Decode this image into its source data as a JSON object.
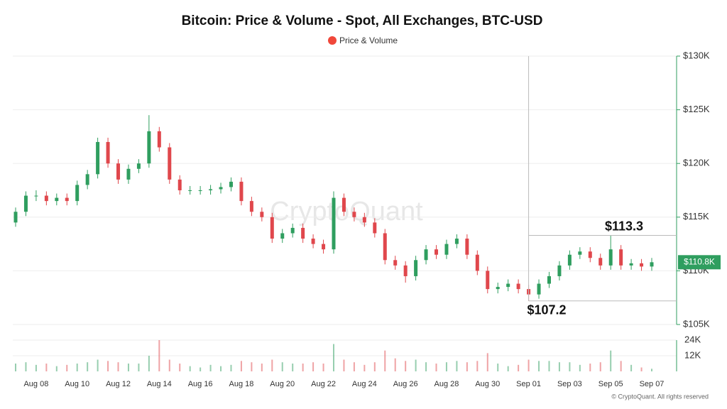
{
  "chart_data": {
    "type": "candlestick",
    "title": "Bitcoin: Price & Volume - Spot, All Exchanges, BTC-USD",
    "legend": "Price & Volume",
    "legend_color": "#f0473a",
    "watermark": "CryptoQuant",
    "copyright": "© CryptoQuant. All rights reserved",
    "up_color": "#2f9e5f",
    "down_color": "#e0474c",
    "categories": [
      null,
      null,
      "Aug 08",
      null,
      null,
      null,
      "Aug 10",
      null,
      null,
      null,
      "Aug 12",
      null,
      null,
      null,
      "Aug 14",
      null,
      null,
      null,
      "Aug 16",
      null,
      null,
      null,
      "Aug 18",
      null,
      null,
      null,
      "Aug 20",
      null,
      null,
      null,
      "Aug 22",
      null,
      null,
      null,
      "Aug 24",
      null,
      null,
      null,
      "Aug 26",
      null,
      null,
      null,
      "Aug 28",
      null,
      null,
      null,
      "Aug 30",
      null,
      null,
      null,
      "Sep 01",
      null,
      null,
      null,
      "Sep 03",
      null,
      null,
      null,
      "Sep 05",
      null,
      null,
      null,
      "Sep 07"
    ],
    "open": [
      114500,
      115500,
      117000,
      117000,
      116500,
      116800,
      116500,
      118000,
      119000,
      122000,
      120000,
      118500,
      119500,
      120000,
      123000,
      121500,
      118500,
      117500,
      117500,
      117500,
      117600,
      117800,
      118300,
      116500,
      115500,
      115000,
      113000,
      113500,
      114000,
      113000,
      112500,
      112000,
      116800,
      115500,
      115000,
      114500,
      113500,
      111000,
      110500,
      109500,
      111000,
      112000,
      111500,
      112500,
      113000,
      111500,
      110000,
      108300,
      108500,
      108800,
      108300,
      107800,
      108800,
      109500,
      110500,
      111500,
      111800,
      111200,
      110500,
      112000,
      110500,
      110700,
      110400
    ],
    "high": [
      115900,
      117400,
      117500,
      117400,
      117200,
      117200,
      118400,
      119400,
      122400,
      122400,
      120400,
      119900,
      120400,
      124500,
      123400,
      121900,
      118900,
      117900,
      117900,
      118000,
      118200,
      118700,
      118700,
      116900,
      115900,
      115400,
      113900,
      114400,
      114400,
      113400,
      112900,
      117400,
      117200,
      115900,
      115400,
      114900,
      113900,
      111400,
      110900,
      111400,
      112400,
      112400,
      112900,
      113400,
      113400,
      111900,
      110400,
      108900,
      109200,
      109200,
      108700,
      109200,
      109900,
      110900,
      111900,
      112200,
      112200,
      111600,
      113300,
      112400,
      111100,
      111100,
      111200
    ],
    "low": [
      114100,
      115100,
      116500,
      116100,
      116100,
      116100,
      116100,
      117600,
      118600,
      119600,
      118100,
      118100,
      119100,
      119600,
      121100,
      118100,
      117100,
      117100,
      117100,
      117100,
      117200,
      117400,
      116100,
      115100,
      114600,
      112600,
      112600,
      113100,
      112600,
      112100,
      111600,
      111600,
      115100,
      114600,
      114100,
      113100,
      110600,
      110100,
      108900,
      109100,
      110600,
      111100,
      111100,
      112100,
      111100,
      109600,
      107900,
      107900,
      108100,
      107900,
      107200,
      107400,
      108400,
      109100,
      110100,
      111100,
      110800,
      110100,
      110100,
      110100,
      110100,
      110000,
      110000
    ],
    "close": [
      115500,
      117000,
      117000,
      116500,
      116800,
      116500,
      118000,
      119000,
      122000,
      120000,
      118500,
      119500,
      120000,
      123000,
      121500,
      118500,
      117500,
      117500,
      117500,
      117600,
      117800,
      118300,
      116500,
      115500,
      115000,
      113000,
      113500,
      114000,
      113000,
      112500,
      112000,
      116800,
      115500,
      115000,
      114500,
      113500,
      111000,
      110500,
      109500,
      111000,
      112000,
      111500,
      112500,
      113000,
      111500,
      110000,
      108300,
      108500,
      108800,
      108300,
      107800,
      108800,
      109500,
      110500,
      111500,
      111800,
      111200,
      110500,
      112000,
      110500,
      110700,
      110400,
      110800
    ],
    "volume": [
      6000,
      7000,
      5000,
      6000,
      4000,
      5000,
      6000,
      7000,
      9000,
      8000,
      7000,
      6000,
      6000,
      12000,
      24000,
      9000,
      6000,
      4000,
      3000,
      5000,
      4000,
      5000,
      8000,
      7000,
      6000,
      9000,
      7000,
      6000,
      6000,
      7000,
      6000,
      21000,
      9000,
      7000,
      5000,
      7000,
      16000,
      10000,
      8000,
      9000,
      7000,
      6000,
      7000,
      8000,
      7000,
      8000,
      14000,
      6000,
      4000,
      5000,
      9000,
      8000,
      8000,
      7000,
      7000,
      5000,
      6000,
      7000,
      16000,
      8000,
      5000,
      3000,
      2000
    ],
    "ylim": [
      105000,
      130000
    ],
    "yticks": [
      {
        "value": 105000,
        "label": "$105K"
      },
      {
        "value": 110000,
        "label": "$110K"
      },
      {
        "value": 115000,
        "label": "$115K"
      },
      {
        "value": 120000,
        "label": "$120K"
      },
      {
        "value": 125000,
        "label": "$125K"
      },
      {
        "value": 130000,
        "label": "$130K"
      }
    ],
    "volume_ylim": [
      0,
      24000
    ],
    "volume_yticks": [
      {
        "value": 12000,
        "label": "12K"
      },
      {
        "value": 24000,
        "label": "24K"
      }
    ],
    "current_price": {
      "value": 110800,
      "label": "$110.8K"
    },
    "annotations": [
      {
        "value": 113300,
        "label": "$113.3"
      },
      {
        "value": 107200,
        "label": "$107.2"
      }
    ],
    "grid": true
  }
}
